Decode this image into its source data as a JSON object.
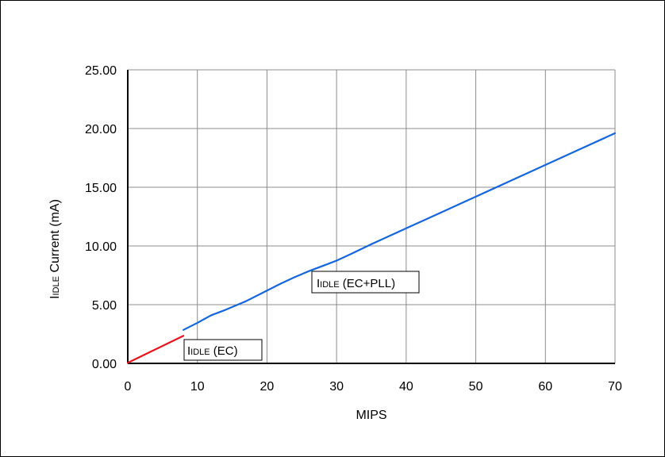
{
  "chart_data": {
    "type": "line",
    "xlabel": "MIPS",
    "ylabel": {
      "prefix": "I",
      "subscript": "IDLE",
      "suffix": " Current (mA)"
    },
    "xlim": [
      0,
      70
    ],
    "ylim": [
      0,
      25
    ],
    "xticks": [
      "0",
      "10",
      "20",
      "30",
      "40",
      "50",
      "60",
      "70"
    ],
    "yticks": [
      "0.00",
      "5.00",
      "10.00",
      "15.00",
      "20.00",
      "25.00"
    ],
    "grid": true,
    "series": [
      {
        "name": {
          "prefix": "I",
          "subscript": "IDLE",
          "suffix": " (EC)"
        },
        "color": "#e8141c",
        "x": [
          0,
          8
        ],
        "y": [
          0.05,
          2.35
        ]
      },
      {
        "name": {
          "prefix": "I",
          "subscript": "IDLE",
          "suffix": " (EC+PLL)"
        },
        "color": "#1466e0",
        "x": [
          8,
          10,
          12,
          14,
          17,
          20,
          22,
          24,
          26,
          28,
          30,
          32,
          35,
          40,
          45,
          50,
          55,
          60,
          65,
          70
        ],
        "y": [
          2.85,
          3.45,
          4.1,
          4.55,
          5.3,
          6.2,
          6.8,
          7.35,
          7.85,
          8.3,
          8.75,
          9.3,
          10.15,
          11.5,
          12.85,
          14.2,
          15.55,
          16.9,
          18.25,
          19.6
        ]
      }
    ]
  }
}
